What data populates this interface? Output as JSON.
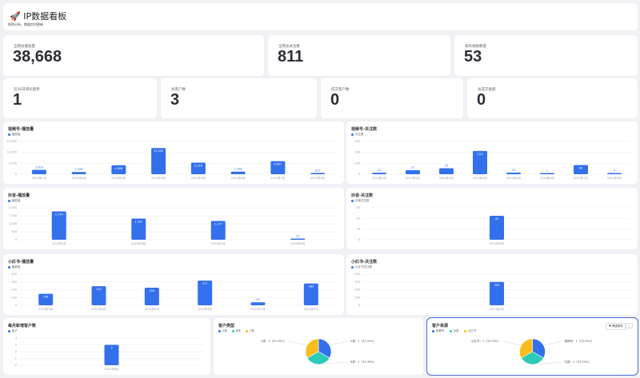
{
  "header": {
    "icon": "rocket-icon",
    "title": "IP数据看板",
    "subtitle": "矩阵分析，数据实时更新"
  },
  "stats": [
    {
      "label": "全网总播放量",
      "value": "38,668"
    },
    {
      "label": "全网总关注数",
      "value": "811"
    },
    {
      "label": "发布视频数量",
      "value": "53"
    },
    {
      "label": "近30日增长趋势",
      "value": "1"
    },
    {
      "label": "总客户数",
      "value": "3"
    },
    {
      "label": "成交客户数",
      "value": "0"
    },
    {
      "label": "总成交金额",
      "value": "0"
    }
  ],
  "colors": {
    "bar": "#3370eb",
    "pie": [
      "#3370eb",
      "#2ccab8",
      "#f7bd1a"
    ]
  },
  "charts": [
    {
      "title": "视频号-播放量",
      "legend": "播放量",
      "type": "bar",
      "ylim": [
        0,
        15000
      ],
      "yticks": [
        "0",
        "5,000",
        "10,000",
        "15,000"
      ],
      "categories": [
        "2024年1月",
        "2024年2月",
        "2024年3月",
        "2024年4月",
        "2024年5月",
        "2024年6月",
        "2024年7月",
        "2024年8月"
      ],
      "values": [
        2003,
        1008,
        4098,
        12004,
        5316,
        1208,
        6007,
        617
      ],
      "labels": [
        "2,003",
        "1,008",
        "4,098",
        "12,004",
        "5,316",
        "1,208",
        "6,007",
        "617"
      ]
    },
    {
      "title": "视频号-关注数",
      "legend": "关注数",
      "type": "bar",
      "ylim": [
        0,
        300
      ],
      "yticks": [
        "0",
        "100",
        "200",
        "300"
      ],
      "categories": [
        "2024年1月",
        "2024年2月",
        "2024年3月",
        "2024年4月",
        "2024年5月",
        "2024年6月",
        "2024年7月",
        "2024年8月"
      ],
      "values": [
        14,
        37,
        55,
        213,
        15,
        1,
        84,
        4
      ],
      "labels": [
        "14",
        "37",
        "55",
        "213",
        "15",
        "1",
        "84",
        "4"
      ]
    },
    {
      "title": "抖音-播放量",
      "legend": "播放量",
      "type": "bar",
      "ylim": [
        0,
        2000
      ],
      "yticks": [
        "0",
        "500",
        "1,000",
        "1,500",
        "2,000"
      ],
      "categories": [
        "2024年5月",
        "2024年6月",
        "2024年7月",
        "2024年8月"
      ],
      "values": [
        1774,
        1322,
        1177,
        22
      ],
      "labels": [
        "1,774",
        "1,322",
        "1,177",
        "22"
      ]
    },
    {
      "title": "抖音-关注数",
      "legend": "抖音关注数",
      "type": "bar",
      "ylim": [
        0,
        60
      ],
      "yticks": [
        "0",
        "20",
        "40",
        "60"
      ],
      "categories": [
        "2024年8月"
      ],
      "values": [
        45
      ],
      "labels": [
        "45"
      ]
    },
    {
      "title": "小红书-播放量",
      "legend": "播放量",
      "type": "bar",
      "ylim": [
        0,
        400
      ],
      "yticks": [
        "0",
        "100",
        "200",
        "300",
        "400"
      ],
      "categories": [
        "2024年3月",
        "2024年4月",
        "2024年5月",
        "2024年6月",
        "2024年7月",
        "2024年8月"
      ],
      "values": [
        148,
        245,
        226,
        317,
        39,
        280
      ],
      "labels": [
        "148",
        "245",
        "226",
        "317",
        "39",
        "280"
      ]
    },
    {
      "title": "小红书-关注数",
      "legend": "小红书关注数",
      "type": "bar",
      "ylim": [
        0,
        400
      ],
      "yticks": [
        "0",
        "100",
        "200",
        "300",
        "400"
      ],
      "categories": [
        "2024年8月"
      ],
      "values": [
        300
      ],
      "labels": [
        "300"
      ]
    },
    {
      "title": "每月新增客户数",
      "legend": "客户",
      "type": "bar",
      "ylim": [
        0,
        4
      ],
      "yticks": [
        "0",
        "1",
        "2",
        "3",
        "4"
      ],
      "categories": [
        "2024年8月"
      ],
      "values": [
        3
      ],
      "labels": [
        "3"
      ]
    },
    {
      "title": "客户类型",
      "type": "pie",
      "legend": [
        "A类",
        "B类",
        "C类"
      ],
      "values": [
        1,
        1,
        1
      ],
      "labels": [
        "A类：1（33.33%）",
        "B类：1（33.33%）",
        "C类：1（33.33%）"
      ]
    },
    {
      "title": "客户来源",
      "type": "pie",
      "legend": [
        "视频号",
        "抖音",
        "小红书"
      ],
      "values": [
        1,
        1,
        1
      ],
      "labels": [
        "视频号：1（33.33%）",
        "抖音：1（33.33%）",
        "小红书：1（33.33%）"
      ],
      "filter_label": "筛选条件"
    }
  ]
}
